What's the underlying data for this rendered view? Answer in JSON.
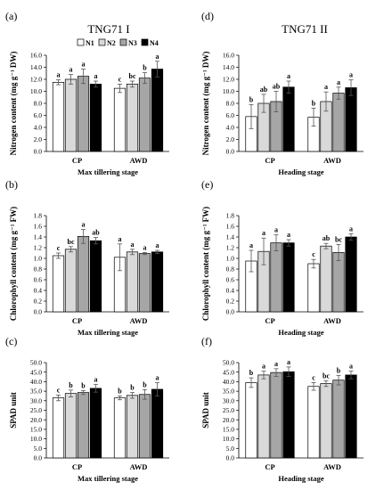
{
  "figure": {
    "columns": [
      {
        "title": "TNG71 I"
      },
      {
        "title": "TNG71 II"
      }
    ],
    "legend": [
      {
        "label": "N1",
        "color": "#ffffff"
      },
      {
        "label": "N2",
        "color": "#d9d9d9"
      },
      {
        "label": "N3",
        "color": "#a6a6a6"
      },
      {
        "label": "N4",
        "color": "#000000"
      }
    ]
  },
  "chart_data": [
    {
      "panel": "(a)",
      "type": "bar",
      "categories": [
        "CP",
        "AWD"
      ],
      "series_names": [
        "N1",
        "N2",
        "N3",
        "N4"
      ],
      "values": [
        [
          11.5,
          12.0,
          12.5,
          11.2
        ],
        [
          10.5,
          11.2,
          12.2,
          13.7
        ]
      ],
      "errors": [
        [
          0.4,
          0.8,
          1.2,
          0.5
        ],
        [
          0.7,
          0.5,
          0.9,
          1.3
        ]
      ],
      "letters": [
        [
          "a",
          "a",
          "a",
          "a"
        ],
        [
          "c",
          "bc",
          "b",
          "a"
        ]
      ],
      "ylabel": "Nitrogen content (mg g⁻¹ DW)",
      "xlabel": "Max tillering stage",
      "ylim": [
        0,
        16
      ],
      "yticks": [
        "0.0",
        "2.0",
        "4.0",
        "6.0",
        "8.0",
        "10.0",
        "12.0",
        "14.0",
        "16.0"
      ]
    },
    {
      "panel": "(b)",
      "type": "bar",
      "categories": [
        "CP",
        "AWD"
      ],
      "series_names": [
        "N1",
        "N2",
        "N3",
        "N4"
      ],
      "values": [
        [
          1.05,
          1.17,
          1.41,
          1.33
        ],
        [
          1.02,
          1.12,
          1.09,
          1.12
        ]
      ],
      "errors": [
        [
          0.05,
          0.05,
          0.13,
          0.06
        ],
        [
          0.25,
          0.05,
          0.02,
          0.03
        ]
      ],
      "letters": [
        [
          "c",
          "bc",
          "a",
          "ab"
        ],
        [
          "a",
          "a",
          "a",
          "a"
        ]
      ],
      "ylabel": "Chlorophyll content (mg g⁻¹ FW)",
      "xlabel": "Max tillering stage",
      "ylim": [
        0,
        1.8
      ],
      "yticks": [
        "0.0",
        "0.2",
        "0.4",
        "0.6",
        "0.8",
        "1.0",
        "1.2",
        "1.4",
        "1.6",
        "1.8"
      ]
    },
    {
      "panel": "(c)",
      "type": "bar",
      "categories": [
        "CP",
        "AWD"
      ],
      "series_names": [
        "N1",
        "N2",
        "N3",
        "N4"
      ],
      "values": [
        [
          31.5,
          33.8,
          34.3,
          36.5
        ],
        [
          31.5,
          32.8,
          33.3,
          36.0
        ]
      ],
      "errors": [
        [
          1.5,
          1.8,
          1.0,
          2.0
        ],
        [
          1.0,
          1.5,
          2.5,
          3.5
        ]
      ],
      "letters": [
        [
          "c",
          "b",
          "b",
          "a"
        ],
        [
          "b",
          "b",
          "b",
          "a"
        ]
      ],
      "ylabel": "SPAD unit",
      "xlabel": "Max tillering stage",
      "ylim": [
        0,
        50
      ],
      "yticks": [
        "0.0",
        "5.0",
        "10.0",
        "15.0",
        "20.0",
        "25.0",
        "30.0",
        "35.0",
        "40.0",
        "45.0",
        "50.0"
      ]
    },
    {
      "panel": "(d)",
      "type": "bar",
      "categories": [
        "CP",
        "AWD"
      ],
      "series_names": [
        "N1",
        "N2",
        "N3",
        "N4"
      ],
      "values": [
        [
          5.8,
          8.0,
          8.3,
          10.7
        ],
        [
          5.7,
          8.3,
          9.7,
          10.6
        ]
      ],
      "errors": [
        [
          2.0,
          1.5,
          1.7,
          1.0
        ],
        [
          1.5,
          1.6,
          1.0,
          1.3
        ]
      ],
      "letters": [
        [
          "b",
          "ab",
          "ab",
          "a"
        ],
        [
          "b",
          "a",
          "a",
          "a"
        ]
      ],
      "ylabel": "Nitrogen content (mg g⁻¹ DW)",
      "xlabel": "Heading stage",
      "ylim": [
        0,
        16
      ],
      "yticks": [
        "0.0",
        "2.0",
        "4.0",
        "6.0",
        "8.0",
        "10.0",
        "12.0",
        "14.0",
        "16.0"
      ]
    },
    {
      "panel": "(e)",
      "type": "bar",
      "categories": [
        "CP",
        "AWD"
      ],
      "series_names": [
        "N1",
        "N2",
        "N3",
        "N4"
      ],
      "values": [
        [
          0.95,
          1.13,
          1.29,
          1.29
        ],
        [
          0.9,
          1.23,
          1.11,
          1.4
        ]
      ],
      "errors": [
        [
          0.2,
          0.25,
          0.15,
          0.06
        ],
        [
          0.08,
          0.05,
          0.15,
          0.06
        ]
      ],
      "letters": [
        [
          "a",
          "a",
          "a",
          "a"
        ],
        [
          "c",
          "ab",
          "bc",
          "a"
        ]
      ],
      "ylabel": "Chlorophyll content (mg g⁻¹ FW)",
      "xlabel": "Heading stage",
      "ylim": [
        0,
        1.8
      ],
      "yticks": [
        "0.0",
        "0.2",
        "0.4",
        "0.6",
        "0.8",
        "1.0",
        "1.2",
        "1.4",
        "1.6",
        "1.8"
      ]
    },
    {
      "panel": "(f)",
      "type": "bar",
      "categories": [
        "CP",
        "AWD"
      ],
      "series_names": [
        "N1",
        "N2",
        "N3",
        "N4"
      ],
      "values": [
        [
          39.5,
          43.5,
          44.8,
          45.2
        ],
        [
          37.5,
          39.0,
          40.8,
          43.5
        ]
      ],
      "errors": [
        [
          2.5,
          2.0,
          2.0,
          2.5
        ],
        [
          2.0,
          1.5,
          2.5,
          2.0
        ]
      ],
      "letters": [
        [
          "b",
          "a",
          "a",
          "a"
        ],
        [
          "c",
          "bc",
          "b",
          "a"
        ]
      ],
      "ylabel": "SPAD unit",
      "xlabel": "Heading stage",
      "ylim": [
        0,
        50
      ],
      "yticks": [
        "0.0",
        "5.0",
        "10.0",
        "15.0",
        "20.0",
        "25.0",
        "30.0",
        "35.0",
        "40.0",
        "45.0",
        "50.0"
      ]
    }
  ]
}
